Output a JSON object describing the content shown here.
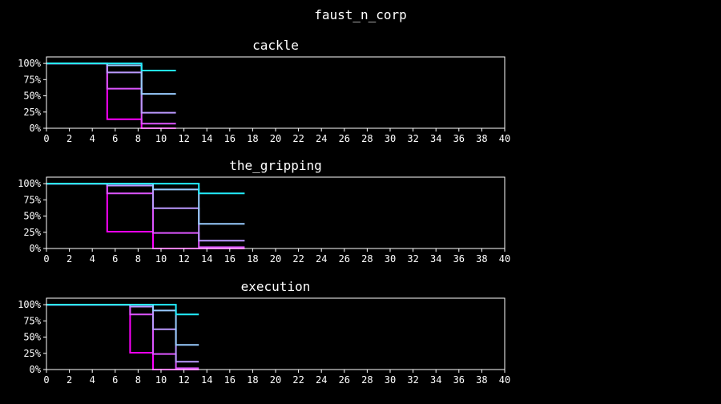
{
  "figure": {
    "title": "faust_n_corp"
  },
  "chart_data": [
    {
      "type": "line",
      "step": true,
      "title": "cackle",
      "xlim": [
        0,
        40
      ],
      "ylim": [
        0,
        1.1
      ],
      "xticks": [
        0,
        2,
        4,
        6,
        8,
        10,
        12,
        14,
        16,
        18,
        20,
        22,
        24,
        26,
        28,
        30,
        32,
        34,
        36,
        38,
        40
      ],
      "yticks": [
        0,
        0.25,
        0.5,
        0.75,
        1.0
      ],
      "ytick_labels": [
        "0%",
        "25%",
        "50%",
        "75%",
        "100%"
      ],
      "series": [
        {
          "color": "#ff00ff",
          "points": [
            [
              0,
              1.0
            ],
            [
              5.3,
              1.0
            ],
            [
              5.3,
              0.14
            ],
            [
              8.3,
              0.14
            ],
            [
              8.3,
              0.0
            ],
            [
              11.3,
              0.0
            ]
          ]
        },
        {
          "color": "#dd55ff",
          "points": [
            [
              0,
              1.0
            ],
            [
              5.3,
              1.0
            ],
            [
              5.3,
              0.61
            ],
            [
              8.3,
              0.61
            ],
            [
              8.3,
              0.07
            ],
            [
              11.3,
              0.07
            ]
          ]
        },
        {
          "color": "#bb99ff",
          "points": [
            [
              0,
              1.0
            ],
            [
              5.3,
              1.0
            ],
            [
              5.3,
              0.86
            ],
            [
              8.3,
              0.86
            ],
            [
              8.3,
              0.24
            ],
            [
              11.3,
              0.24
            ]
          ]
        },
        {
          "color": "#99ccff",
          "points": [
            [
              0,
              1.0
            ],
            [
              5.3,
              1.0
            ],
            [
              5.3,
              0.97
            ],
            [
              8.3,
              0.97
            ],
            [
              8.3,
              0.53
            ],
            [
              11.3,
              0.53
            ]
          ]
        },
        {
          "color": "#22eeff",
          "points": [
            [
              0,
              1.0
            ],
            [
              8.3,
              1.0
            ],
            [
              8.3,
              0.89
            ],
            [
              11.3,
              0.89
            ]
          ]
        }
      ]
    },
    {
      "type": "line",
      "step": true,
      "title": "the_gripping",
      "xlim": [
        0,
        40
      ],
      "ylim": [
        0,
        1.1
      ],
      "xticks": [
        0,
        2,
        4,
        6,
        8,
        10,
        12,
        14,
        16,
        18,
        20,
        22,
        24,
        26,
        28,
        30,
        32,
        34,
        36,
        38,
        40
      ],
      "yticks": [
        0,
        0.25,
        0.5,
        0.75,
        1.0
      ],
      "ytick_labels": [
        "0%",
        "25%",
        "50%",
        "75%",
        "100%"
      ],
      "series": [
        {
          "color": "#ff00ff",
          "points": [
            [
              0,
              1.0
            ],
            [
              5.3,
              1.0
            ],
            [
              5.3,
              0.26
            ],
            [
              9.3,
              0.26
            ],
            [
              9.3,
              0.0
            ],
            [
              17.3,
              0.0
            ]
          ]
        },
        {
          "color": "#dd55ff",
          "points": [
            [
              0,
              1.0
            ],
            [
              5.3,
              1.0
            ],
            [
              5.3,
              0.85
            ],
            [
              9.3,
              0.85
            ],
            [
              9.3,
              0.24
            ],
            [
              13.3,
              0.24
            ],
            [
              13.3,
              0.02
            ],
            [
              17.3,
              0.02
            ]
          ]
        },
        {
          "color": "#bb99ff",
          "points": [
            [
              0,
              1.0
            ],
            [
              5.3,
              1.0
            ],
            [
              5.3,
              0.97
            ],
            [
              9.3,
              0.97
            ],
            [
              9.3,
              0.62
            ],
            [
              13.3,
              0.62
            ],
            [
              13.3,
              0.12
            ],
            [
              17.3,
              0.12
            ]
          ]
        },
        {
          "color": "#99ccff",
          "points": [
            [
              0,
              1.0
            ],
            [
              9.3,
              1.0
            ],
            [
              9.3,
              0.91
            ],
            [
              13.3,
              0.91
            ],
            [
              13.3,
              0.38
            ],
            [
              17.3,
              0.38
            ]
          ]
        },
        {
          "color": "#22eeff",
          "points": [
            [
              0,
              1.0
            ],
            [
              13.3,
              1.0
            ],
            [
              13.3,
              0.85
            ],
            [
              17.3,
              0.85
            ]
          ]
        }
      ]
    },
    {
      "type": "line",
      "step": true,
      "title": "execution",
      "xlim": [
        0,
        40
      ],
      "ylim": [
        0,
        1.1
      ],
      "xticks": [
        0,
        2,
        4,
        6,
        8,
        10,
        12,
        14,
        16,
        18,
        20,
        22,
        24,
        26,
        28,
        30,
        32,
        34,
        36,
        38,
        40
      ],
      "yticks": [
        0,
        0.25,
        0.5,
        0.75,
        1.0
      ],
      "ytick_labels": [
        "0%",
        "25%",
        "50%",
        "75%",
        "100%"
      ],
      "series": [
        {
          "color": "#ff00ff",
          "points": [
            [
              0,
              1.0
            ],
            [
              7.3,
              1.0
            ],
            [
              7.3,
              0.26
            ],
            [
              9.3,
              0.26
            ],
            [
              9.3,
              0.0
            ],
            [
              13.3,
              0.0
            ]
          ]
        },
        {
          "color": "#dd55ff",
          "points": [
            [
              0,
              1.0
            ],
            [
              7.3,
              1.0
            ],
            [
              7.3,
              0.85
            ],
            [
              9.3,
              0.85
            ],
            [
              9.3,
              0.24
            ],
            [
              11.3,
              0.24
            ],
            [
              11.3,
              0.02
            ],
            [
              13.3,
              0.02
            ]
          ]
        },
        {
          "color": "#bb99ff",
          "points": [
            [
              0,
              1.0
            ],
            [
              7.3,
              1.0
            ],
            [
              7.3,
              0.97
            ],
            [
              9.3,
              0.97
            ],
            [
              9.3,
              0.62
            ],
            [
              11.3,
              0.62
            ],
            [
              11.3,
              0.12
            ],
            [
              13.3,
              0.12
            ]
          ]
        },
        {
          "color": "#99ccff",
          "points": [
            [
              0,
              1.0
            ],
            [
              9.3,
              1.0
            ],
            [
              9.3,
              0.91
            ],
            [
              11.3,
              0.91
            ],
            [
              11.3,
              0.38
            ],
            [
              13.3,
              0.38
            ]
          ]
        },
        {
          "color": "#22eeff",
          "points": [
            [
              0,
              1.0
            ],
            [
              11.3,
              1.0
            ],
            [
              11.3,
              0.85
            ],
            [
              13.3,
              0.85
            ]
          ]
        }
      ]
    }
  ]
}
